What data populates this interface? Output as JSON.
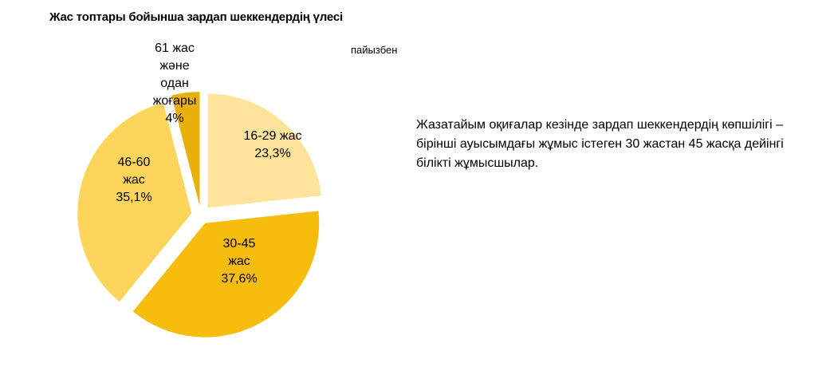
{
  "chart_data": {
    "type": "pie",
    "title": "Жас топтары бойынша зардап шеккендердің үлесі",
    "unit_label": "пайызбен",
    "slices": [
      {
        "label_lines": [
          "16-29 жас",
          "23,3%"
        ],
        "value": 23.3,
        "color": "#fde49a"
      },
      {
        "label_lines": [
          "30-45",
          "жас",
          "37,6%"
        ],
        "value": 37.6,
        "color": "#f6bd0e"
      },
      {
        "label_lines": [
          "46-60",
          "жас",
          "35,1%"
        ],
        "value": 35.1,
        "color": "#fdd55a"
      },
      {
        "label_lines": [
          "61 жас",
          "және",
          "одан",
          "жоғары",
          "4%"
        ],
        "value": 4.0,
        "color": "#e9b00a"
      }
    ]
  },
  "note": "Жазатайым оқиғалар кезінде зардап шеккендердің көпшілігі – бірінші ауысымдағы жұмыс істеген 30 жастан 45 жасқа дейінгі білікті жұмысшылар."
}
